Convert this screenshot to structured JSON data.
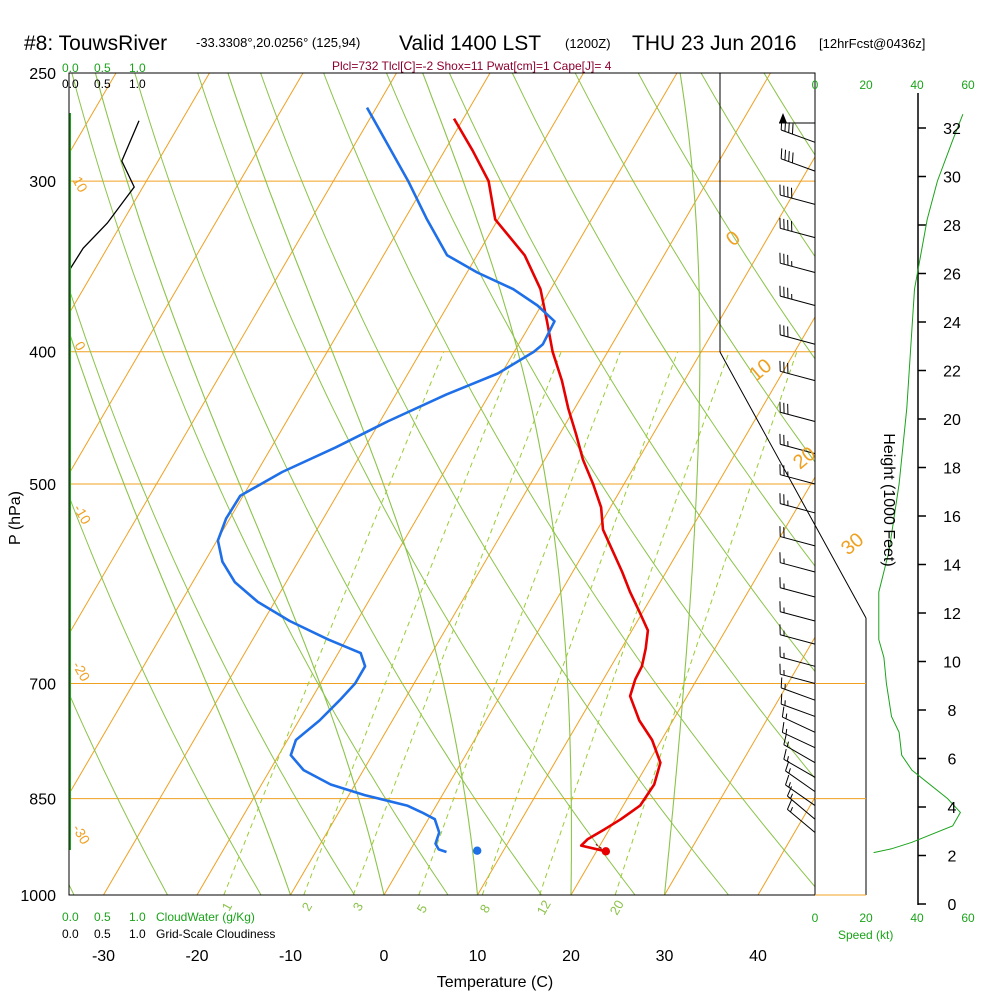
{
  "header": {
    "station": "#8: TouwsRiver",
    "coords": "-33.3308°,20.0256° (125,94)",
    "valid": "Valid 1400 LST",
    "zulu": "(1200Z)",
    "date": "THU 23 Jun 2016",
    "forecast": "[12hrFcst@0436z]",
    "indices": "Plcl=732 Tlcl[C]=-2 Shox=11 Pwat[cm]=1 Cape[J]= 4"
  },
  "axes": {
    "xlabel": "Temperature (C)",
    "ylabel": "P (hPa)",
    "height_label": "Height (1000 Feet)",
    "speed_label": "Speed (kt)",
    "cloudwater_label": "CloudWater (g/Kg)",
    "cloudiness_label": "Grid-Scale Cloudiness"
  },
  "colors": {
    "temperature": "#e60000",
    "dewpoint": "#1e6fe8",
    "isotherm": "#f0a020",
    "dry_adiabat": "#8bc34a",
    "moist_adiabat": "#8bc34a",
    "mixing_ratio": "#9acd32",
    "accent_green": "#1aa31a",
    "index_text": "#8b0030"
  },
  "chart_data": {
    "type": "line",
    "diagram": "skew-T log-P",
    "pressure_range_hPa": [
      1000,
      250
    ],
    "temperature_range_C": [
      -35,
      50
    ],
    "pressure_ticks": [
      1000,
      850,
      700,
      500,
      400,
      300,
      250
    ],
    "temperature_ticks": [
      -30,
      -20,
      -10,
      0,
      10,
      20,
      30,
      40
    ],
    "height_ticks_kft": [
      0,
      2,
      4,
      6,
      8,
      10,
      12,
      14,
      16,
      18,
      20,
      22,
      24,
      26,
      28,
      30,
      32
    ],
    "cloud_ticks_top": [
      {
        "green": "0.0",
        "black": "0.0"
      },
      {
        "green": "0.5",
        "black": "0.5"
      },
      {
        "green": "1.0",
        "black": "1.0"
      }
    ],
    "cloud_ticks_bottom": [
      {
        "green": "0.0",
        "black": "0.0"
      },
      {
        "green": "0.5",
        "black": "0.5"
      },
      {
        "green": "1.0",
        "black": "1.0"
      }
    ],
    "speed_ticks_top": [
      "0",
      "20",
      "40",
      "60"
    ],
    "speed_ticks_bottom": [
      "0",
      "20",
      "40",
      "60"
    ],
    "isotherm_labels": [
      "0",
      "10",
      "20",
      "30"
    ],
    "dry_adiabat_labels": [
      "10",
      "0",
      "-10",
      "-20",
      "-30"
    ],
    "mixing_ratio_labels": [
      "1",
      "2",
      "3",
      "5",
      "8",
      "12",
      "20"
    ],
    "series": [
      {
        "name": "Temperature",
        "points": [
          [
            21.0,
            929
          ],
          [
            18.0,
            920
          ],
          [
            18.3,
            910
          ],
          [
            19.5,
            895
          ],
          [
            20.6,
            880
          ],
          [
            21.8,
            860
          ],
          [
            22.0,
            830
          ],
          [
            21.3,
            800
          ],
          [
            19.0,
            770
          ],
          [
            16.4,
            745
          ],
          [
            13.9,
            715
          ],
          [
            13.4,
            695
          ],
          [
            13.3,
            680
          ],
          [
            12.6,
            660
          ],
          [
            11.7,
            640
          ],
          [
            9.6,
            620
          ],
          [
            7.4,
            600
          ],
          [
            5.3,
            580
          ],
          [
            3.0,
            560
          ],
          [
            0.6,
            540
          ],
          [
            -1.0,
            520
          ],
          [
            -3.3,
            500
          ],
          [
            -5.9,
            480
          ],
          [
            -8.2,
            460
          ],
          [
            -10.7,
            440
          ],
          [
            -13.1,
            420
          ],
          [
            -15.9,
            400
          ],
          [
            -18.4,
            380
          ],
          [
            -21.1,
            360
          ],
          [
            -24.9,
            340
          ],
          [
            -30.3,
            320
          ],
          [
            -33.4,
            300
          ],
          [
            -37.0,
            285
          ],
          [
            -41.0,
            270
          ]
        ]
      },
      {
        "name": "Dewpoint",
        "points": [
          [
            4.0,
            930
          ],
          [
            3.0,
            926
          ],
          [
            2.3,
            917
          ],
          [
            2.0,
            900
          ],
          [
            0.7,
            880
          ],
          [
            -1.1,
            870
          ],
          [
            -3.1,
            860
          ],
          [
            -8.3,
            845
          ],
          [
            -12.6,
            830
          ],
          [
            -16.4,
            810
          ],
          [
            -18.7,
            790
          ],
          [
            -19.1,
            770
          ],
          [
            -17.8,
            745
          ],
          [
            -16.9,
            720
          ],
          [
            -16.3,
            700
          ],
          [
            -16.3,
            680
          ],
          [
            -17.6,
            665
          ],
          [
            -21.9,
            650
          ],
          [
            -27.2,
            630
          ],
          [
            -31.8,
            610
          ],
          [
            -35.5,
            590
          ],
          [
            -38.1,
            570
          ],
          [
            -39.9,
            550
          ],
          [
            -40.4,
            530
          ],
          [
            -40.3,
            510
          ],
          [
            -37.3,
            490
          ],
          [
            -33.1,
            470
          ],
          [
            -29.2,
            450
          ],
          [
            -24.6,
            430
          ],
          [
            -20.4,
            415
          ],
          [
            -17.9,
            400
          ],
          [
            -17.4,
            395
          ],
          [
            -17.6,
            380
          ],
          [
            -20.4,
            370
          ],
          [
            -24.0,
            360
          ],
          [
            -28.9,
            350
          ],
          [
            -33.2,
            340
          ],
          [
            -37.6,
            320
          ],
          [
            -42.0,
            300
          ],
          [
            -47.0,
            280
          ],
          [
            -51.0,
            265
          ]
        ]
      },
      {
        "name": "Parcel",
        "points": [
          [
            21.0,
            929
          ],
          [
            20.0,
            922
          ],
          [
            19.5,
            918
          ]
        ]
      }
    ],
    "surface_markers": [
      {
        "name": "surface-temperature",
        "T": 21.0,
        "p": 929
      },
      {
        "name": "surface-dewpoint",
        "T": 7.2,
        "p": 928
      }
    ],
    "cloudiness_profile": [
      [
        1.0,
        271
      ],
      [
        0.75,
        290
      ],
      [
        0.93,
        303
      ],
      [
        0.54,
        322
      ],
      [
        0.19,
        336
      ],
      [
        0.0,
        348
      ]
    ],
    "height_profile_speed_kt": [
      [
        23,
        931
      ],
      [
        30,
        925
      ],
      [
        38,
        915
      ],
      [
        54,
        890
      ],
      [
        57,
        870
      ],
      [
        52,
        850
      ],
      [
        38,
        810
      ],
      [
        34,
        790
      ],
      [
        33,
        760
      ],
      [
        30,
        740
      ],
      [
        29,
        720
      ],
      [
        28,
        700
      ],
      [
        27,
        670
      ],
      [
        25,
        650
      ],
      [
        25,
        600
      ],
      [
        29,
        560
      ],
      [
        33,
        500
      ],
      [
        36,
        440
      ],
      [
        39,
        360
      ],
      [
        44,
        320
      ],
      [
        48,
        300
      ],
      [
        54,
        280
      ],
      [
        58,
        268
      ]
    ],
    "wind_profile": [
      {
        "p": 272,
        "dir": 270,
        "spd": 50
      },
      {
        "p": 281,
        "dir": 290,
        "spd": 40
      },
      {
        "p": 295,
        "dir": 290,
        "spd": 40
      },
      {
        "p": 312,
        "dir": 285,
        "spd": 40
      },
      {
        "p": 330,
        "dir": 285,
        "spd": 40
      },
      {
        "p": 350,
        "dir": 285,
        "spd": 35
      },
      {
        "p": 370,
        "dir": 285,
        "spd": 35
      },
      {
        "p": 395,
        "dir": 285,
        "spd": 30
      },
      {
        "p": 420,
        "dir": 285,
        "spd": 30
      },
      {
        "p": 450,
        "dir": 285,
        "spd": 30
      },
      {
        "p": 475,
        "dir": 285,
        "spd": 25
      },
      {
        "p": 500,
        "dir": 285,
        "spd": 25
      },
      {
        "p": 525,
        "dir": 285,
        "spd": 25
      },
      {
        "p": 555,
        "dir": 285,
        "spd": 20
      },
      {
        "p": 580,
        "dir": 285,
        "spd": 15
      },
      {
        "p": 605,
        "dir": 285,
        "spd": 15
      },
      {
        "p": 630,
        "dir": 285,
        "spd": 15
      },
      {
        "p": 655,
        "dir": 285,
        "spd": 15
      },
      {
        "p": 680,
        "dir": 285,
        "spd": 15
      },
      {
        "p": 700,
        "dir": 285,
        "spd": 15
      },
      {
        "p": 720,
        "dir": 290,
        "spd": 15
      },
      {
        "p": 740,
        "dir": 290,
        "spd": 15
      },
      {
        "p": 760,
        "dir": 295,
        "spd": 15
      },
      {
        "p": 780,
        "dir": 295,
        "spd": 15
      },
      {
        "p": 800,
        "dir": 300,
        "spd": 15
      },
      {
        "p": 820,
        "dir": 300,
        "spd": 15
      },
      {
        "p": 840,
        "dir": 305,
        "spd": 15
      },
      {
        "p": 860,
        "dir": 305,
        "spd": 15
      },
      {
        "p": 880,
        "dir": 310,
        "spd": 15
      },
      {
        "p": 900,
        "dir": 310,
        "spd": 15
      }
    ]
  }
}
